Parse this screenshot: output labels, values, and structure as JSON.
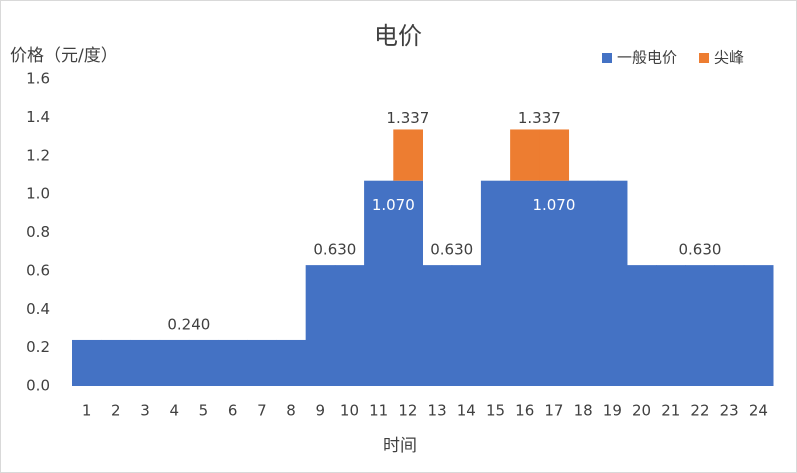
{
  "chart_data": {
    "type": "stacked_bar",
    "title": "电价",
    "y_label": "价格（元/度）",
    "x_label": "时间",
    "categories": [
      "1",
      "2",
      "3",
      "4",
      "5",
      "6",
      "7",
      "8",
      "9",
      "10",
      "11",
      "12",
      "13",
      "14",
      "15",
      "16",
      "17",
      "18",
      "19",
      "20",
      "21",
      "22",
      "23",
      "24"
    ],
    "series": [
      {
        "name": "一般电价",
        "color": "#4472c4",
        "values": [
          0.24,
          0.24,
          0.24,
          0.24,
          0.24,
          0.24,
          0.24,
          0.24,
          0.63,
          0.63,
          1.07,
          1.07,
          0.63,
          0.63,
          1.07,
          1.07,
          1.07,
          1.07,
          1.07,
          0.63,
          0.63,
          0.63,
          0.63,
          0.63
        ],
        "value_labels": [
          null,
          null,
          null,
          "0.240",
          null,
          null,
          null,
          null,
          "0.630",
          null,
          "1.070",
          null,
          "0.630",
          null,
          null,
          null,
          "1.070",
          null,
          null,
          null,
          null,
          "0.630",
          null,
          null
        ]
      },
      {
        "name": "尖峰",
        "color": "#ed7d31",
        "values": [
          null,
          null,
          null,
          null,
          null,
          null,
          null,
          null,
          null,
          null,
          null,
          0.267,
          null,
          null,
          null,
          0.267,
          0.267,
          null,
          null,
          null,
          null,
          null,
          null,
          null
        ]
      }
    ],
    "total_labels": [
      null,
      null,
      null,
      null,
      null,
      null,
      null,
      null,
      null,
      null,
      null,
      "1.337",
      null,
      null,
      null,
      "1.337",
      null,
      null,
      null,
      null,
      null,
      null,
      null,
      null
    ],
    "ylim": [
      0,
      1.6
    ],
    "yticks": [
      {
        "value": 0,
        "label": "0.0"
      },
      {
        "value": 0.2,
        "label": "0.2"
      },
      {
        "value": 0.4,
        "label": "0.4"
      },
      {
        "value": 0.6,
        "label": "0.6"
      },
      {
        "value": 0.8,
        "label": "0.8"
      },
      {
        "value": 1,
        "label": "1.0"
      },
      {
        "value": 1.2,
        "label": "1.2"
      },
      {
        "value": 1.4,
        "label": "1.4"
      },
      {
        "value": 1.6,
        "label": "1.6"
      }
    ],
    "legend": "top-right",
    "grid": false
  }
}
